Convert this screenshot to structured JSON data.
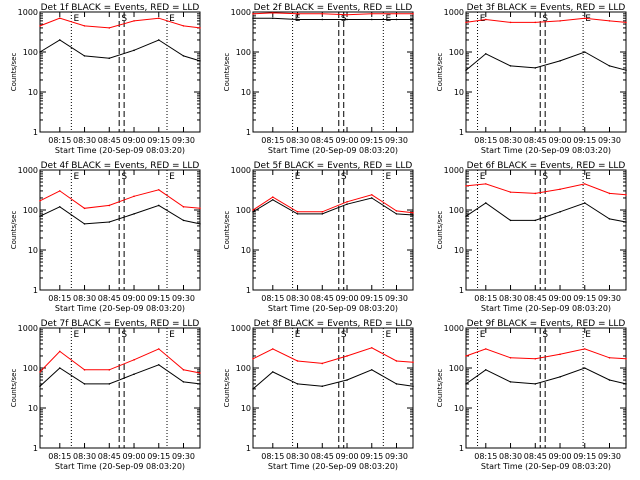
{
  "common": {
    "xlabel": "Start Time (20-Sep-09 08:03:20)",
    "ylabel": "Counts/sec",
    "x_ticks": [
      "08:15",
      "08:30",
      "08:45",
      "09:00",
      "09:15",
      "09:30"
    ],
    "y_ticks": [
      "1",
      "10",
      "100",
      "1000"
    ],
    "ylim": [
      1,
      1000
    ],
    "y_scale": "log",
    "marker_labels": [
      "E",
      "S",
      "E"
    ],
    "colors": {
      "events": "#000000",
      "lld": "#ff0000"
    }
  },
  "chart_data": [
    {
      "type": "line",
      "title": "Det 1f BLACK = Events, RED = LLD",
      "x": [
        "08:03",
        "08:15",
        "08:30",
        "08:45",
        "09:00",
        "09:15",
        "09:30",
        "09:40"
      ],
      "series": [
        {
          "name": "Events",
          "values": [
            100,
            200,
            80,
            70,
            110,
            200,
            80,
            60
          ]
        },
        {
          "name": "LLD",
          "values": [
            450,
            700,
            450,
            400,
            600,
            700,
            450,
            400
          ]
        }
      ]
    },
    {
      "type": "line",
      "title": "Det 2f BLACK = Events, RED = LLD",
      "x": [
        "08:03",
        "08:15",
        "08:30",
        "08:45",
        "09:00",
        "09:15",
        "09:30",
        "09:40"
      ],
      "series": [
        {
          "name": "Events",
          "values": [
            700,
            700,
            650,
            650,
            650,
            650,
            650,
            650
          ]
        },
        {
          "name": "LLD",
          "values": [
            900,
            950,
            900,
            900,
            850,
            900,
            900,
            900
          ]
        }
      ]
    },
    {
      "type": "line",
      "title": "Det 3f BLACK = Events, RED = LLD",
      "x": [
        "08:03",
        "08:15",
        "08:30",
        "08:45",
        "09:00",
        "09:15",
        "09:30",
        "09:40"
      ],
      "series": [
        {
          "name": "Events",
          "values": [
            35,
            90,
            45,
            40,
            60,
            100,
            45,
            35
          ]
        },
        {
          "name": "LLD",
          "values": [
            550,
            650,
            550,
            550,
            600,
            700,
            600,
            550
          ]
        }
      ]
    },
    {
      "type": "line",
      "title": "Det 4f BLACK = Events, RED = LLD",
      "x": [
        "08:03",
        "08:15",
        "08:30",
        "08:45",
        "09:00",
        "09:15",
        "09:30",
        "09:40"
      ],
      "series": [
        {
          "name": "Events",
          "values": [
            70,
            120,
            45,
            50,
            80,
            130,
            55,
            45
          ]
        },
        {
          "name": "LLD",
          "values": [
            170,
            300,
            110,
            130,
            220,
            320,
            120,
            110
          ]
        }
      ]
    },
    {
      "type": "line",
      "title": "Det 5f BLACK = Events, RED = LLD",
      "x": [
        "08:03",
        "08:15",
        "08:30",
        "08:45",
        "09:00",
        "09:15",
        "09:30",
        "09:40"
      ],
      "series": [
        {
          "name": "Events",
          "values": [
            90,
            180,
            80,
            80,
            140,
            200,
            80,
            75
          ]
        },
        {
          "name": "LLD",
          "values": [
            100,
            210,
            90,
            90,
            160,
            240,
            95,
            85
          ]
        }
      ]
    },
    {
      "type": "line",
      "title": "Det 6f BLACK = Events, RED = LLD",
      "x": [
        "08:03",
        "08:15",
        "08:30",
        "08:45",
        "09:00",
        "09:15",
        "09:30",
        "09:40"
      ],
      "series": [
        {
          "name": "Events",
          "values": [
            70,
            150,
            55,
            55,
            90,
            150,
            60,
            50
          ]
        },
        {
          "name": "LLD",
          "values": [
            400,
            450,
            280,
            260,
            330,
            450,
            260,
            240
          ]
        }
      ]
    },
    {
      "type": "line",
      "title": "Det 7f BLACK = Events, RED = LLD",
      "x": [
        "08:03",
        "08:15",
        "08:30",
        "08:45",
        "09:00",
        "09:15",
        "09:30",
        "09:40"
      ],
      "series": [
        {
          "name": "Events",
          "values": [
            35,
            100,
            40,
            40,
            70,
            120,
            45,
            40
          ]
        },
        {
          "name": "LLD",
          "values": [
            80,
            260,
            90,
            90,
            160,
            300,
            90,
            75
          ]
        }
      ]
    },
    {
      "type": "line",
      "title": "Det 8f BLACK = Events, RED = LLD",
      "x": [
        "08:03",
        "08:15",
        "08:30",
        "08:45",
        "09:00",
        "09:15",
        "09:30",
        "09:40"
      ],
      "series": [
        {
          "name": "Events",
          "values": [
            30,
            80,
            40,
            35,
            50,
            90,
            40,
            35
          ]
        },
        {
          "name": "LLD",
          "values": [
            170,
            300,
            150,
            130,
            200,
            320,
            150,
            140
          ]
        }
      ]
    },
    {
      "type": "line",
      "title": "Det 9f BLACK = Events, RED = LLD",
      "x": [
        "08:03",
        "08:15",
        "08:30",
        "08:45",
        "09:00",
        "09:15",
        "09:30",
        "09:40"
      ],
      "series": [
        {
          "name": "Events",
          "values": [
            40,
            90,
            45,
            40,
            60,
            100,
            50,
            40
          ]
        },
        {
          "name": "LLD",
          "values": [
            200,
            300,
            180,
            170,
            220,
            300,
            180,
            170
          ]
        }
      ]
    }
  ]
}
